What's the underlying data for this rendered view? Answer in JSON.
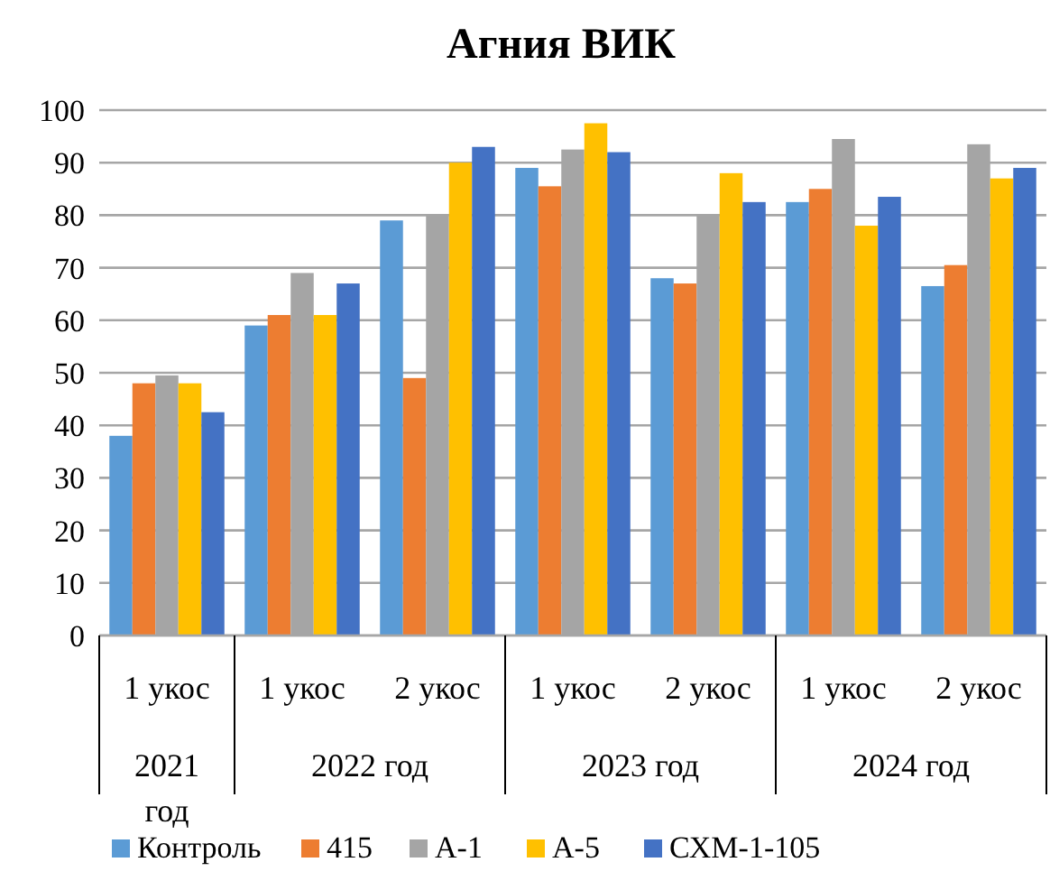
{
  "chart_data": {
    "type": "bar",
    "title": "Агния ВИК",
    "categories": [
      "1 укос",
      "1 укос",
      "2 укос",
      "1 укос",
      "2 укос",
      "1 укос",
      "2 укос"
    ],
    "annotations": [
      "2021 год",
      "2022 год",
      "2023 год",
      "2024 год"
    ],
    "series": [
      {
        "name": "Контроль",
        "color": "#5b9bd5",
        "values": [
          38,
          59,
          79,
          89,
          68,
          82.5,
          66.5
        ]
      },
      {
        "name": "415",
        "color": "#ed7d31",
        "values": [
          48,
          61,
          49,
          85.5,
          67,
          85,
          70.5
        ]
      },
      {
        "name": "А-1",
        "color": "#a5a5a5",
        "values": [
          49.5,
          69,
          80,
          92.5,
          80,
          94.5,
          93.5
        ]
      },
      {
        "name": "А-5",
        "color": "#ffc000",
        "values": [
          48,
          61,
          90,
          97.5,
          88,
          78,
          87
        ]
      },
      {
        "name": "СХМ-1-105",
        "color": "#4472c4",
        "values": [
          42.5,
          67,
          93,
          92,
          82.5,
          83.5,
          89
        ]
      }
    ],
    "ylim": [
      0,
      100
    ],
    "yticks": [
      0,
      10,
      20,
      30,
      40,
      50,
      60,
      70,
      80,
      90,
      100
    ],
    "grid": "y",
    "legend": "bottom"
  }
}
